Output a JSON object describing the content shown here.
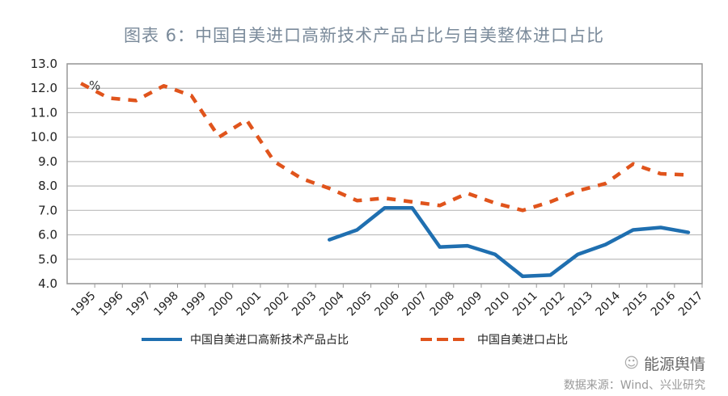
{
  "chart_data": {
    "type": "line",
    "title": "图表 6：中国自美进口高新技术产品占比与自美整体进口占比",
    "unit_label": "%",
    "x": [
      "1995",
      "1996",
      "1997",
      "1998",
      "1999",
      "2000",
      "2001",
      "2002",
      "2003",
      "2004",
      "2005",
      "2006",
      "2007",
      "2008",
      "2009",
      "2010",
      "2011",
      "2012",
      "2013",
      "2014",
      "2015",
      "2016",
      "2017"
    ],
    "ylim": [
      4.0,
      13.0
    ],
    "yticks": [
      "4.0",
      "5.0",
      "6.0",
      "7.0",
      "8.0",
      "9.0",
      "10.0",
      "11.0",
      "12.0",
      "13.0"
    ],
    "grid": true,
    "legend_position": "bottom",
    "series": [
      {
        "name": "中国自美进口高新技术产品占比",
        "color": "#1f6fb0",
        "style": "solid",
        "values": [
          null,
          null,
          null,
          null,
          null,
          null,
          null,
          null,
          null,
          5.8,
          6.2,
          7.1,
          7.1,
          5.5,
          5.55,
          5.2,
          4.3,
          4.35,
          5.2,
          5.6,
          6.2,
          6.3,
          6.1
        ]
      },
      {
        "name": "中国自美进口占比",
        "color": "#e0541c",
        "style": "dashed",
        "values": [
          12.2,
          11.6,
          11.5,
          12.1,
          11.7,
          10.0,
          10.7,
          9.0,
          8.3,
          7.9,
          7.4,
          7.5,
          7.35,
          7.2,
          7.7,
          7.3,
          7.0,
          7.35,
          7.8,
          8.1,
          8.9,
          8.5,
          8.45
        ]
      }
    ]
  },
  "footer": {
    "brand": "能源舆情",
    "source": "数据来源：Wind、兴业研究"
  }
}
